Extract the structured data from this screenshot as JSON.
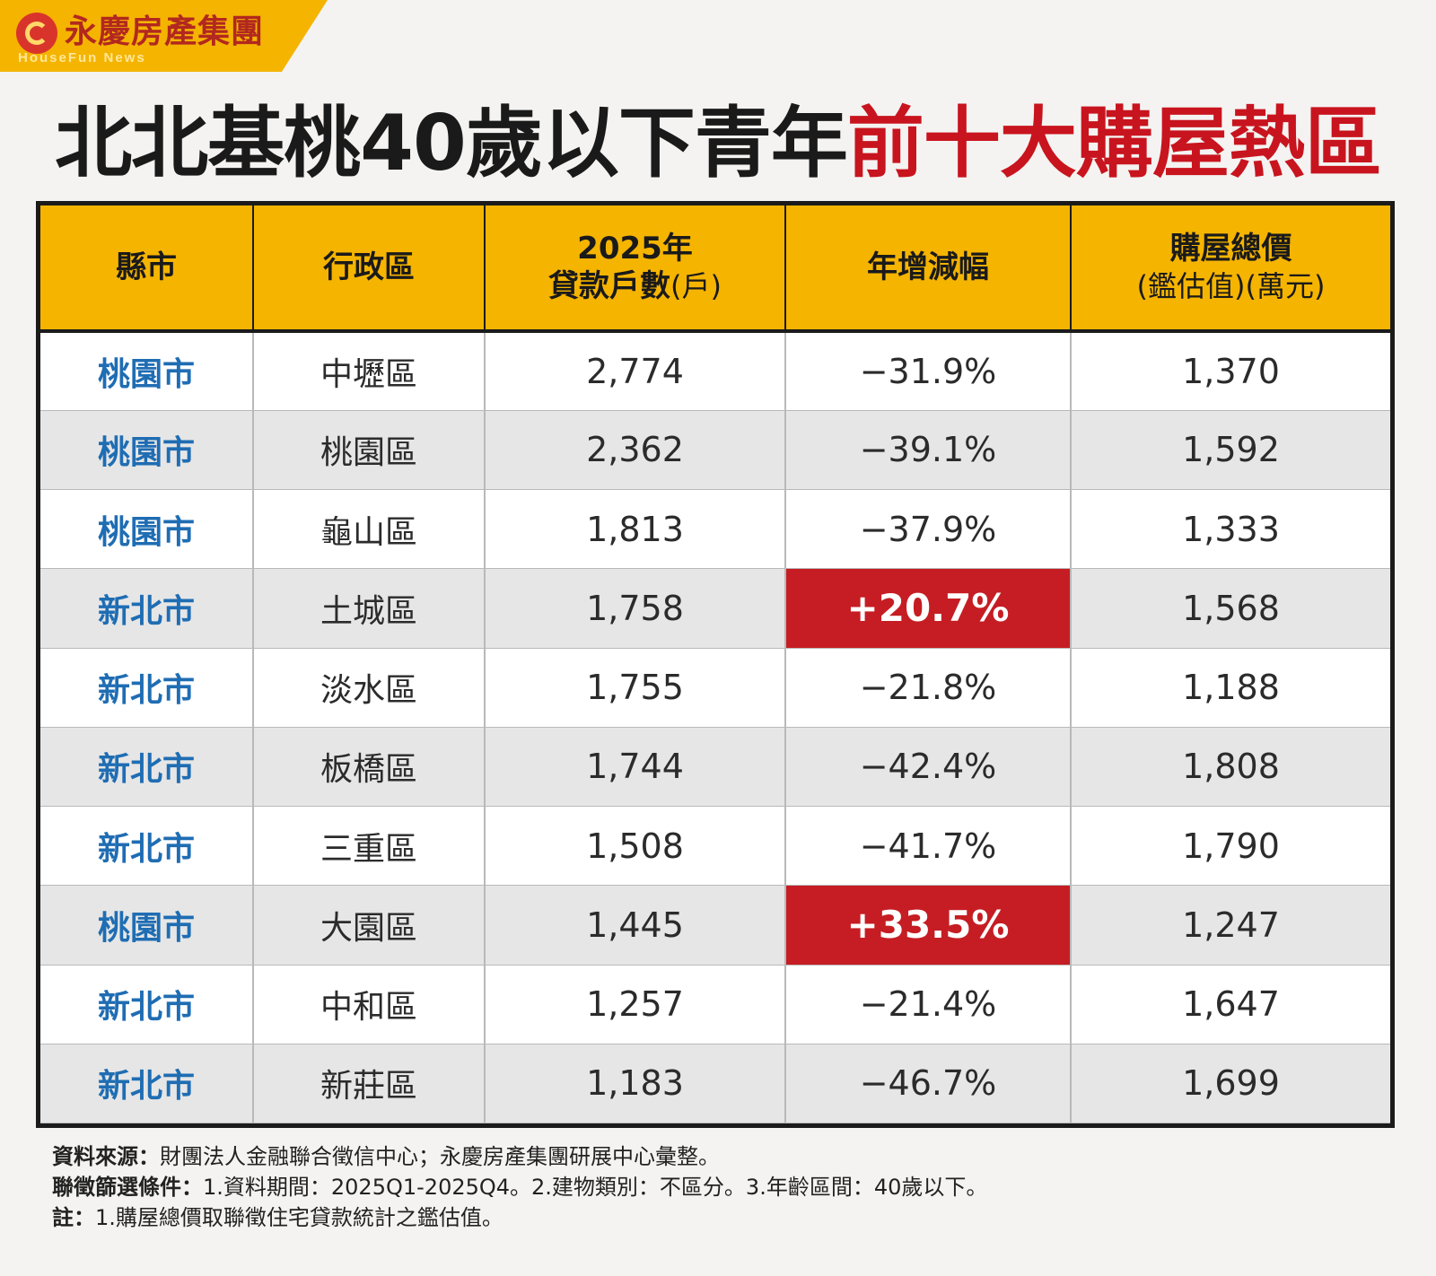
{
  "logo": {
    "brand": "永慶房產集團",
    "sub": "HouseFun News"
  },
  "title": {
    "part1": "北北基桃40歲以下青年",
    "part2": "前十大購屋熱區",
    "colors": {
      "main": "#1a1a1a",
      "highlight": "#c8141e"
    }
  },
  "headers": {
    "city": "縣市",
    "district": "行政區",
    "loans_line1": "2025年",
    "loans_line2": "貸款戶數",
    "loans_unit": "(戶)",
    "change": "年增減幅",
    "price_line1": "購屋總價",
    "price_line2": "(鑑估值)(萬元)"
  },
  "colors": {
    "header_bg": "#f5b400",
    "city_text": "#1f6db3",
    "positive_bg": "#c51d23"
  },
  "chart_data": {
    "type": "table",
    "title": "北北基桃40歲以下青年前十大購屋熱區",
    "columns": [
      "縣市",
      "行政區",
      "2025年貸款戶數(戶)",
      "年增減幅",
      "購屋總價(鑑估值)(萬元)"
    ],
    "rows": [
      {
        "city": "桃園市",
        "district": "中壢區",
        "loans": "2,774",
        "change": "−31.9%",
        "price": "1,370",
        "positive": false
      },
      {
        "city": "桃園市",
        "district": "桃園區",
        "loans": "2,362",
        "change": "−39.1%",
        "price": "1,592",
        "positive": false
      },
      {
        "city": "桃園市",
        "district": "龜山區",
        "loans": "1,813",
        "change": "−37.9%",
        "price": "1,333",
        "positive": false
      },
      {
        "city": "新北市",
        "district": "土城區",
        "loans": "1,758",
        "change": "+20.7%",
        "price": "1,568",
        "positive": true
      },
      {
        "city": "新北市",
        "district": "淡水區",
        "loans": "1,755",
        "change": "−21.8%",
        "price": "1,188",
        "positive": false
      },
      {
        "city": "新北市",
        "district": "板橋區",
        "loans": "1,744",
        "change": "−42.4%",
        "price": "1,808",
        "positive": false
      },
      {
        "city": "新北市",
        "district": "三重區",
        "loans": "1,508",
        "change": "−41.7%",
        "price": "1,790",
        "positive": false
      },
      {
        "city": "桃園市",
        "district": "大園區",
        "loans": "1,445",
        "change": "+33.5%",
        "price": "1,247",
        "positive": true
      },
      {
        "city": "新北市",
        "district": "中和區",
        "loans": "1,257",
        "change": "−21.4%",
        "price": "1,647",
        "positive": false
      },
      {
        "city": "新北市",
        "district": "新莊區",
        "loans": "1,183",
        "change": "−46.7%",
        "price": "1,699",
        "positive": false
      }
    ]
  },
  "notes": [
    {
      "label": "資料來源：",
      "text": "財團法人金融聯合徵信中心；永慶房產集團研展中心彙整。"
    },
    {
      "label": "聯徵篩選條件：",
      "text": "1.資料期間：2025Q1-2025Q4。2.建物類別：不區分。3.年齡區間：40歲以下。"
    },
    {
      "label": "註：",
      "text": "1.購屋總價取聯徵住宅貸款統計之鑑估值。"
    }
  ]
}
